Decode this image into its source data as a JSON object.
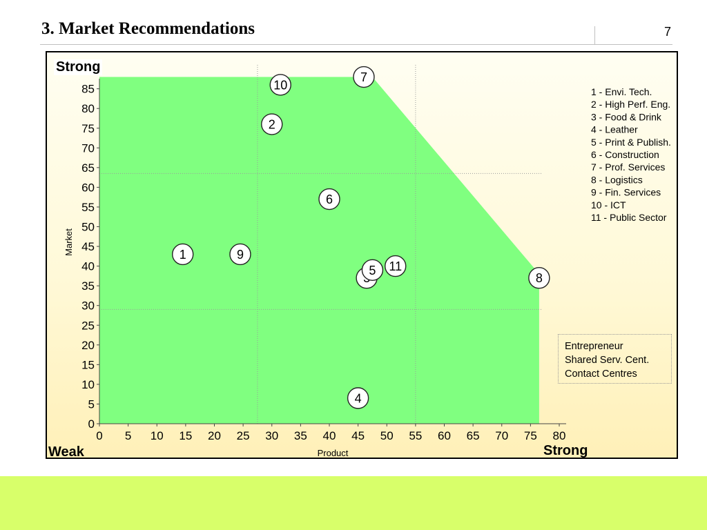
{
  "slide": {
    "title": "3.  Market Recommendations",
    "page_number": "7"
  },
  "chart_data": {
    "type": "scatter",
    "xlabel": "Product",
    "ylabel": "Market",
    "xlim": [
      0,
      80
    ],
    "ylim": [
      0,
      88
    ],
    "x_ticks": [
      0,
      5,
      10,
      15,
      20,
      25,
      30,
      35,
      40,
      45,
      50,
      55,
      60,
      65,
      70,
      75,
      80
    ],
    "y_ticks": [
      0,
      5,
      10,
      15,
      20,
      25,
      30,
      35,
      40,
      45,
      50,
      55,
      60,
      65,
      70,
      75,
      80,
      85
    ],
    "grid": "dotted quadrant lines at x = 27.5, 55 and y = 29, 63.5",
    "corner_labels": {
      "top_left": "Strong",
      "bottom_left": "Weak",
      "bottom_right": "Strong"
    },
    "region": {
      "color": "#80ff80",
      "polygon": [
        [
          0,
          0
        ],
        [
          0,
          88
        ],
        [
          47.5,
          88
        ],
        [
          76.5,
          38
        ],
        [
          76.5,
          0
        ]
      ]
    },
    "points": [
      {
        "label": "1",
        "x": 14.5,
        "y": 43
      },
      {
        "label": "2",
        "x": 30,
        "y": 76
      },
      {
        "label": "3",
        "x": 46.5,
        "y": 37
      },
      {
        "label": "4",
        "x": 45,
        "y": 6.5
      },
      {
        "label": "5",
        "x": 47.5,
        "y": 39
      },
      {
        "label": "6",
        "x": 40,
        "y": 57
      },
      {
        "label": "7",
        "x": 46,
        "y": 88
      },
      {
        "label": "8",
        "x": 76.5,
        "y": 37
      },
      {
        "label": "9",
        "x": 24.5,
        "y": 43
      },
      {
        "label": "10",
        "x": 31.5,
        "y": 86
      },
      {
        "label": "11",
        "x": 51.5,
        "y": 40
      }
    ],
    "legend": {
      "placement": "top-right",
      "entries": [
        "1 - Envi. Tech.",
        "2 - High Perf. Eng.",
        "3 - Food & Drink",
        "4 - Leather",
        "5 - Print & Publish.",
        "6 - Construction",
        "7 - Prof. Services",
        "8 - Logistics",
        "9 - Fin. Services",
        "10 - ICT",
        "11 - Public Sector"
      ]
    },
    "note_box": [
      "Entrepreneur",
      "Shared Serv. Cent.",
      "Contact Centres"
    ]
  }
}
